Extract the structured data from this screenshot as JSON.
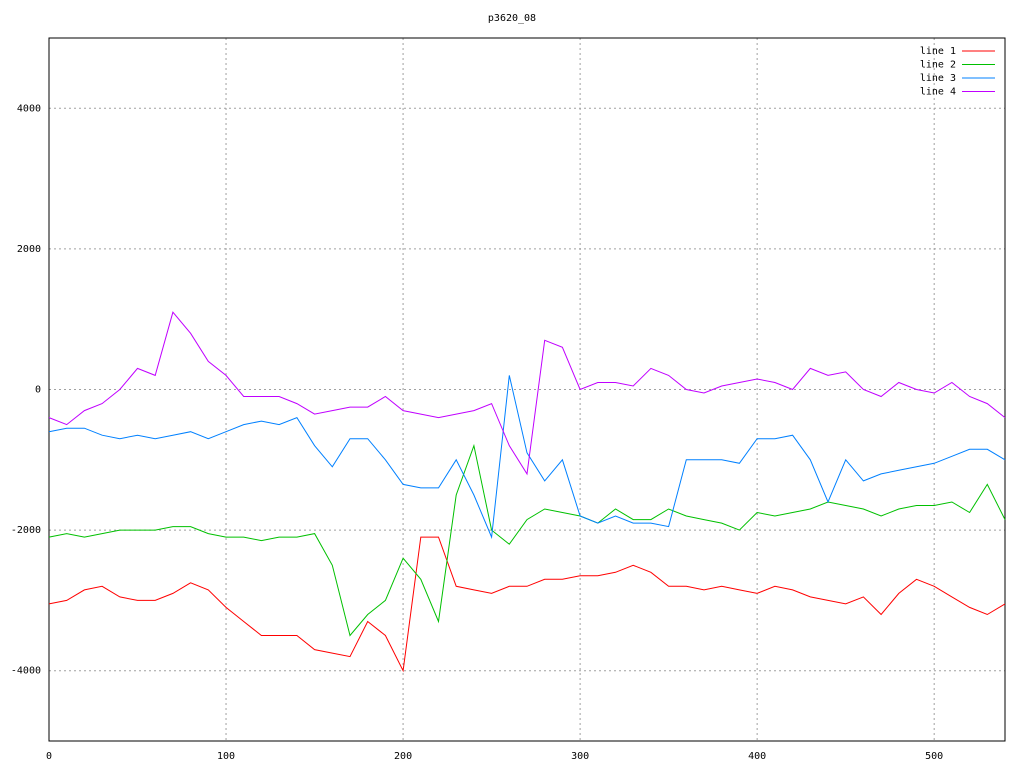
{
  "chart_data": {
    "type": "line",
    "title": "p3620_08",
    "x": [
      0,
      10,
      20,
      30,
      40,
      50,
      60,
      70,
      80,
      90,
      100,
      110,
      120,
      130,
      140,
      150,
      160,
      170,
      180,
      190,
      200,
      210,
      220,
      230,
      240,
      250,
      260,
      270,
      280,
      290,
      300,
      310,
      320,
      330,
      340,
      350,
      360,
      370,
      380,
      390,
      400,
      410,
      420,
      430,
      440,
      450,
      460,
      470,
      480,
      490,
      500,
      510,
      520,
      530,
      540
    ],
    "xlim": [
      0,
      540
    ],
    "xticks": [
      0,
      100,
      200,
      300,
      400,
      500
    ],
    "ylim": [
      -5000,
      5000
    ],
    "yticks": [
      -4000,
      -2000,
      0,
      2000,
      4000
    ],
    "grid": true,
    "legend": "top-right",
    "series": [
      {
        "name": "line 1",
        "color": "#ff0000",
        "values": [
          -3050,
          -3000,
          -2850,
          -2800,
          -2950,
          -3000,
          -3000,
          -2900,
          -2750,
          -2850,
          -3100,
          -3300,
          -3500,
          -3500,
          -3500,
          -3700,
          -3750,
          -3800,
          -3300,
          -3500,
          -4000,
          -2100,
          -2100,
          -2800,
          -2850,
          -2900,
          -2800,
          -2800,
          -2700,
          -2700,
          -2650,
          -2650,
          -2600,
          -2500,
          -2600,
          -2800,
          -2800,
          -2850,
          -2800,
          -2850,
          -2900,
          -2800,
          -2850,
          -2950,
          -3000,
          -3050,
          -2950,
          -3200,
          -2900,
          -2700,
          -2800,
          -2950,
          -3100,
          -3200,
          -3050
        ]
      },
      {
        "name": "line 2",
        "color": "#00c000",
        "values": [
          -2100,
          -2050,
          -2100,
          -2050,
          -2000,
          -2000,
          -2000,
          -1950,
          -1950,
          -2050,
          -2100,
          -2100,
          -2150,
          -2100,
          -2100,
          -2050,
          -2500,
          -3500,
          -3200,
          -3000,
          -2400,
          -2700,
          -3300,
          -1500,
          -800,
          -2000,
          -2200,
          -1850,
          -1700,
          -1750,
          -1800,
          -1900,
          -1700,
          -1850,
          -1850,
          -1700,
          -1800,
          -1850,
          -1900,
          -2000,
          -1750,
          -1800,
          -1750,
          -1700,
          -1600,
          -1650,
          -1700,
          -1800,
          -1700,
          -1650,
          -1650,
          -1600,
          -1750,
          -1350,
          -1850
        ]
      },
      {
        "name": "line 3",
        "color": "#0080ff",
        "values": [
          -600,
          -550,
          -550,
          -650,
          -700,
          -650,
          -700,
          -650,
          -600,
          -700,
          -600,
          -500,
          -450,
          -500,
          -400,
          -800,
          -1100,
          -700,
          -700,
          -1000,
          -1350,
          -1400,
          -1400,
          -1000,
          -1500,
          -2100,
          200,
          -900,
          -1300,
          -1000,
          -1800,
          -1900,
          -1800,
          -1900,
          -1900,
          -1950,
          -1000,
          -1000,
          -1000,
          -1050,
          -700,
          -700,
          -650,
          -1000,
          -1600,
          -1000,
          -1300,
          -1200,
          -1150,
          -1100,
          -1050,
          -950,
          -850,
          -850,
          -1000
        ]
      },
      {
        "name": "line 4",
        "color": "#c000ff",
        "values": [
          -400,
          -500,
          -300,
          -200,
          0,
          300,
          200,
          1100,
          800,
          400,
          200,
          -100,
          -100,
          -100,
          -200,
          -350,
          -300,
          -250,
          -250,
          -100,
          -300,
          -350,
          -400,
          -350,
          -300,
          -200,
          -800,
          -1200,
          700,
          600,
          0,
          100,
          100,
          50,
          300,
          200,
          0,
          -50,
          50,
          100,
          150,
          100,
          0,
          300,
          200,
          250,
          0,
          -100,
          100,
          0,
          -50,
          100,
          -100,
          -200,
          -400
        ]
      }
    ]
  }
}
